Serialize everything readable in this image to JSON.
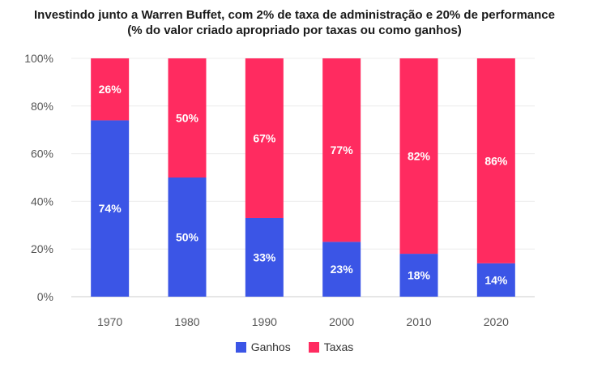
{
  "chart_data": {
    "type": "bar",
    "stacked": true,
    "title": "Investindo junto a Warren Buffet, com 2% de taxa de administração e 20% de performance",
    "subtitle": "(% do valor criado apropriado por taxas ou como ganhos)",
    "categories": [
      "1970",
      "1980",
      "1990",
      "2000",
      "2010",
      "2020"
    ],
    "series": [
      {
        "name": "Ganhos",
        "values": [
          74,
          50,
          33,
          23,
          18,
          14
        ],
        "labels": [
          "74%",
          "50%",
          "33%",
          "23%",
          "18%",
          "14%"
        ],
        "color": "#3B55E6"
      },
      {
        "name": "Taxas",
        "values": [
          26,
          50,
          67,
          77,
          82,
          86
        ],
        "labels": [
          "26%",
          "50%",
          "67%",
          "77%",
          "82%",
          "86%"
        ],
        "color": "#FF2B60"
      }
    ],
    "y_ticks": [
      "0%",
      "20%",
      "40%",
      "60%",
      "80%",
      "100%"
    ],
    "ylim": [
      0,
      100
    ],
    "grid": true,
    "legend": "bottom-center"
  }
}
